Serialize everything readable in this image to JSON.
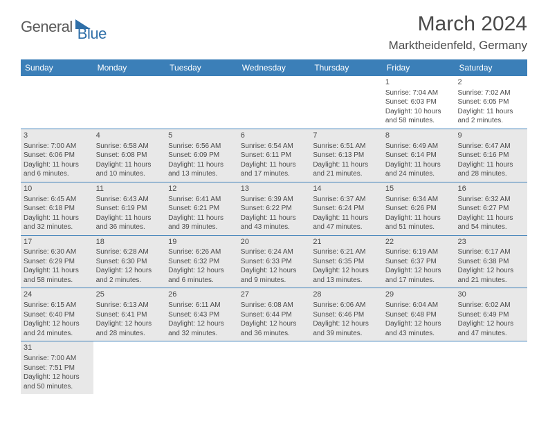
{
  "logo": {
    "general": "General",
    "blue": "Blue"
  },
  "header": {
    "month_year": "March 2024",
    "location": "Marktheidenfeld, Germany"
  },
  "colors": {
    "header_bar": "#3b7fb8",
    "shaded_cell": "#e8e8e8",
    "text": "#4a4a4a",
    "logo_blue": "#2f6fa8",
    "background": "#ffffff"
  },
  "weekdays": [
    "Sunday",
    "Monday",
    "Tuesday",
    "Wednesday",
    "Thursday",
    "Friday",
    "Saturday"
  ],
  "weeks": [
    [
      {
        "day": "",
        "sunrise": "",
        "sunset": "",
        "daylight_l1": "",
        "daylight_l2": "",
        "shaded": false,
        "empty": true
      },
      {
        "day": "",
        "sunrise": "",
        "sunset": "",
        "daylight_l1": "",
        "daylight_l2": "",
        "shaded": false,
        "empty": true
      },
      {
        "day": "",
        "sunrise": "",
        "sunset": "",
        "daylight_l1": "",
        "daylight_l2": "",
        "shaded": false,
        "empty": true
      },
      {
        "day": "",
        "sunrise": "",
        "sunset": "",
        "daylight_l1": "",
        "daylight_l2": "",
        "shaded": false,
        "empty": true
      },
      {
        "day": "",
        "sunrise": "",
        "sunset": "",
        "daylight_l1": "",
        "daylight_l2": "",
        "shaded": false,
        "empty": true
      },
      {
        "day": "1",
        "sunrise": "Sunrise: 7:04 AM",
        "sunset": "Sunset: 6:03 PM",
        "daylight_l1": "Daylight: 10 hours",
        "daylight_l2": "and 58 minutes.",
        "shaded": false
      },
      {
        "day": "2",
        "sunrise": "Sunrise: 7:02 AM",
        "sunset": "Sunset: 6:05 PM",
        "daylight_l1": "Daylight: 11 hours",
        "daylight_l2": "and 2 minutes.",
        "shaded": false
      }
    ],
    [
      {
        "day": "3",
        "sunrise": "Sunrise: 7:00 AM",
        "sunset": "Sunset: 6:06 PM",
        "daylight_l1": "Daylight: 11 hours",
        "daylight_l2": "and 6 minutes.",
        "shaded": true
      },
      {
        "day": "4",
        "sunrise": "Sunrise: 6:58 AM",
        "sunset": "Sunset: 6:08 PM",
        "daylight_l1": "Daylight: 11 hours",
        "daylight_l2": "and 10 minutes.",
        "shaded": true
      },
      {
        "day": "5",
        "sunrise": "Sunrise: 6:56 AM",
        "sunset": "Sunset: 6:09 PM",
        "daylight_l1": "Daylight: 11 hours",
        "daylight_l2": "and 13 minutes.",
        "shaded": true
      },
      {
        "day": "6",
        "sunrise": "Sunrise: 6:54 AM",
        "sunset": "Sunset: 6:11 PM",
        "daylight_l1": "Daylight: 11 hours",
        "daylight_l2": "and 17 minutes.",
        "shaded": true
      },
      {
        "day": "7",
        "sunrise": "Sunrise: 6:51 AM",
        "sunset": "Sunset: 6:13 PM",
        "daylight_l1": "Daylight: 11 hours",
        "daylight_l2": "and 21 minutes.",
        "shaded": true
      },
      {
        "day": "8",
        "sunrise": "Sunrise: 6:49 AM",
        "sunset": "Sunset: 6:14 PM",
        "daylight_l1": "Daylight: 11 hours",
        "daylight_l2": "and 24 minutes.",
        "shaded": true
      },
      {
        "day": "9",
        "sunrise": "Sunrise: 6:47 AM",
        "sunset": "Sunset: 6:16 PM",
        "daylight_l1": "Daylight: 11 hours",
        "daylight_l2": "and 28 minutes.",
        "shaded": true
      }
    ],
    [
      {
        "day": "10",
        "sunrise": "Sunrise: 6:45 AM",
        "sunset": "Sunset: 6:18 PM",
        "daylight_l1": "Daylight: 11 hours",
        "daylight_l2": "and 32 minutes.",
        "shaded": true
      },
      {
        "day": "11",
        "sunrise": "Sunrise: 6:43 AM",
        "sunset": "Sunset: 6:19 PM",
        "daylight_l1": "Daylight: 11 hours",
        "daylight_l2": "and 36 minutes.",
        "shaded": true
      },
      {
        "day": "12",
        "sunrise": "Sunrise: 6:41 AM",
        "sunset": "Sunset: 6:21 PM",
        "daylight_l1": "Daylight: 11 hours",
        "daylight_l2": "and 39 minutes.",
        "shaded": true
      },
      {
        "day": "13",
        "sunrise": "Sunrise: 6:39 AM",
        "sunset": "Sunset: 6:22 PM",
        "daylight_l1": "Daylight: 11 hours",
        "daylight_l2": "and 43 minutes.",
        "shaded": true
      },
      {
        "day": "14",
        "sunrise": "Sunrise: 6:37 AM",
        "sunset": "Sunset: 6:24 PM",
        "daylight_l1": "Daylight: 11 hours",
        "daylight_l2": "and 47 minutes.",
        "shaded": true
      },
      {
        "day": "15",
        "sunrise": "Sunrise: 6:34 AM",
        "sunset": "Sunset: 6:26 PM",
        "daylight_l1": "Daylight: 11 hours",
        "daylight_l2": "and 51 minutes.",
        "shaded": true
      },
      {
        "day": "16",
        "sunrise": "Sunrise: 6:32 AM",
        "sunset": "Sunset: 6:27 PM",
        "daylight_l1": "Daylight: 11 hours",
        "daylight_l2": "and 54 minutes.",
        "shaded": true
      }
    ],
    [
      {
        "day": "17",
        "sunrise": "Sunrise: 6:30 AM",
        "sunset": "Sunset: 6:29 PM",
        "daylight_l1": "Daylight: 11 hours",
        "daylight_l2": "and 58 minutes.",
        "shaded": true
      },
      {
        "day": "18",
        "sunrise": "Sunrise: 6:28 AM",
        "sunset": "Sunset: 6:30 PM",
        "daylight_l1": "Daylight: 12 hours",
        "daylight_l2": "and 2 minutes.",
        "shaded": true
      },
      {
        "day": "19",
        "sunrise": "Sunrise: 6:26 AM",
        "sunset": "Sunset: 6:32 PM",
        "daylight_l1": "Daylight: 12 hours",
        "daylight_l2": "and 6 minutes.",
        "shaded": true
      },
      {
        "day": "20",
        "sunrise": "Sunrise: 6:24 AM",
        "sunset": "Sunset: 6:33 PM",
        "daylight_l1": "Daylight: 12 hours",
        "daylight_l2": "and 9 minutes.",
        "shaded": true
      },
      {
        "day": "21",
        "sunrise": "Sunrise: 6:21 AM",
        "sunset": "Sunset: 6:35 PM",
        "daylight_l1": "Daylight: 12 hours",
        "daylight_l2": "and 13 minutes.",
        "shaded": true
      },
      {
        "day": "22",
        "sunrise": "Sunrise: 6:19 AM",
        "sunset": "Sunset: 6:37 PM",
        "daylight_l1": "Daylight: 12 hours",
        "daylight_l2": "and 17 minutes.",
        "shaded": true
      },
      {
        "day": "23",
        "sunrise": "Sunrise: 6:17 AM",
        "sunset": "Sunset: 6:38 PM",
        "daylight_l1": "Daylight: 12 hours",
        "daylight_l2": "and 21 minutes.",
        "shaded": true
      }
    ],
    [
      {
        "day": "24",
        "sunrise": "Sunrise: 6:15 AM",
        "sunset": "Sunset: 6:40 PM",
        "daylight_l1": "Daylight: 12 hours",
        "daylight_l2": "and 24 minutes.",
        "shaded": true
      },
      {
        "day": "25",
        "sunrise": "Sunrise: 6:13 AM",
        "sunset": "Sunset: 6:41 PM",
        "daylight_l1": "Daylight: 12 hours",
        "daylight_l2": "and 28 minutes.",
        "shaded": true
      },
      {
        "day": "26",
        "sunrise": "Sunrise: 6:11 AM",
        "sunset": "Sunset: 6:43 PM",
        "daylight_l1": "Daylight: 12 hours",
        "daylight_l2": "and 32 minutes.",
        "shaded": true
      },
      {
        "day": "27",
        "sunrise": "Sunrise: 6:08 AM",
        "sunset": "Sunset: 6:44 PM",
        "daylight_l1": "Daylight: 12 hours",
        "daylight_l2": "and 36 minutes.",
        "shaded": true
      },
      {
        "day": "28",
        "sunrise": "Sunrise: 6:06 AM",
        "sunset": "Sunset: 6:46 PM",
        "daylight_l1": "Daylight: 12 hours",
        "daylight_l2": "and 39 minutes.",
        "shaded": true
      },
      {
        "day": "29",
        "sunrise": "Sunrise: 6:04 AM",
        "sunset": "Sunset: 6:48 PM",
        "daylight_l1": "Daylight: 12 hours",
        "daylight_l2": "and 43 minutes.",
        "shaded": true
      },
      {
        "day": "30",
        "sunrise": "Sunrise: 6:02 AM",
        "sunset": "Sunset: 6:49 PM",
        "daylight_l1": "Daylight: 12 hours",
        "daylight_l2": "and 47 minutes.",
        "shaded": true
      }
    ],
    [
      {
        "day": "31",
        "sunrise": "Sunrise: 7:00 AM",
        "sunset": "Sunset: 7:51 PM",
        "daylight_l1": "Daylight: 12 hours",
        "daylight_l2": "and 50 minutes.",
        "shaded": true
      },
      {
        "day": "",
        "sunrise": "",
        "sunset": "",
        "daylight_l1": "",
        "daylight_l2": "",
        "shaded": false,
        "empty": true
      },
      {
        "day": "",
        "sunrise": "",
        "sunset": "",
        "daylight_l1": "",
        "daylight_l2": "",
        "shaded": false,
        "empty": true
      },
      {
        "day": "",
        "sunrise": "",
        "sunset": "",
        "daylight_l1": "",
        "daylight_l2": "",
        "shaded": false,
        "empty": true
      },
      {
        "day": "",
        "sunrise": "",
        "sunset": "",
        "daylight_l1": "",
        "daylight_l2": "",
        "shaded": false,
        "empty": true
      },
      {
        "day": "",
        "sunrise": "",
        "sunset": "",
        "daylight_l1": "",
        "daylight_l2": "",
        "shaded": false,
        "empty": true
      },
      {
        "day": "",
        "sunrise": "",
        "sunset": "",
        "daylight_l1": "",
        "daylight_l2": "",
        "shaded": false,
        "empty": true
      }
    ]
  ]
}
